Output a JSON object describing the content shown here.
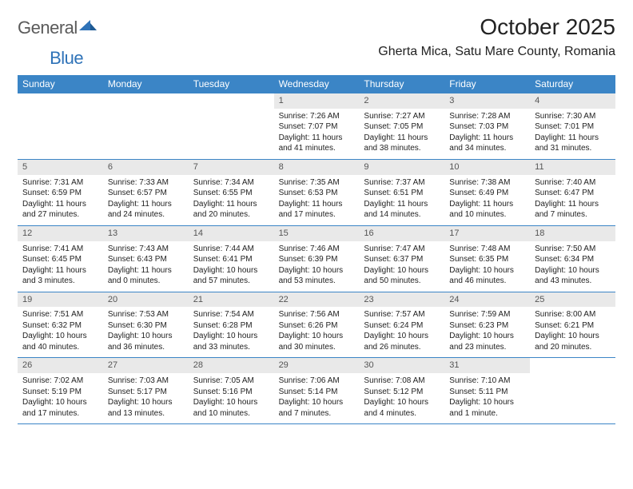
{
  "logo": {
    "word1": "General",
    "word2": "Blue"
  },
  "title": "October 2025",
  "location": "Gherta Mica, Satu Mare County, Romania",
  "colors": {
    "header_bg": "#3b85c6",
    "header_text": "#ffffff",
    "date_bg": "#e9e9e9",
    "rule": "#3b85c6",
    "body_text": "#222222",
    "logo_gray": "#5a5a5a",
    "logo_blue": "#2f73b8"
  },
  "typography": {
    "title_fontsize": 28,
    "location_fontsize": 16,
    "header_fontsize": 12,
    "cell_fontsize": 10,
    "date_fontsize": 11
  },
  "day_names": [
    "Sunday",
    "Monday",
    "Tuesday",
    "Wednesday",
    "Thursday",
    "Friday",
    "Saturday"
  ],
  "weeks": [
    [
      {
        "empty": true
      },
      {
        "empty": true
      },
      {
        "empty": true
      },
      {
        "date": "1",
        "sunrise": "Sunrise: 7:26 AM",
        "sunset": "Sunset: 7:07 PM",
        "day1": "Daylight: 11 hours",
        "day2": "and 41 minutes."
      },
      {
        "date": "2",
        "sunrise": "Sunrise: 7:27 AM",
        "sunset": "Sunset: 7:05 PM",
        "day1": "Daylight: 11 hours",
        "day2": "and 38 minutes."
      },
      {
        "date": "3",
        "sunrise": "Sunrise: 7:28 AM",
        "sunset": "Sunset: 7:03 PM",
        "day1": "Daylight: 11 hours",
        "day2": "and 34 minutes."
      },
      {
        "date": "4",
        "sunrise": "Sunrise: 7:30 AM",
        "sunset": "Sunset: 7:01 PM",
        "day1": "Daylight: 11 hours",
        "day2": "and 31 minutes."
      }
    ],
    [
      {
        "date": "5",
        "sunrise": "Sunrise: 7:31 AM",
        "sunset": "Sunset: 6:59 PM",
        "day1": "Daylight: 11 hours",
        "day2": "and 27 minutes."
      },
      {
        "date": "6",
        "sunrise": "Sunrise: 7:33 AM",
        "sunset": "Sunset: 6:57 PM",
        "day1": "Daylight: 11 hours",
        "day2": "and 24 minutes."
      },
      {
        "date": "7",
        "sunrise": "Sunrise: 7:34 AM",
        "sunset": "Sunset: 6:55 PM",
        "day1": "Daylight: 11 hours",
        "day2": "and 20 minutes."
      },
      {
        "date": "8",
        "sunrise": "Sunrise: 7:35 AM",
        "sunset": "Sunset: 6:53 PM",
        "day1": "Daylight: 11 hours",
        "day2": "and 17 minutes."
      },
      {
        "date": "9",
        "sunrise": "Sunrise: 7:37 AM",
        "sunset": "Sunset: 6:51 PM",
        "day1": "Daylight: 11 hours",
        "day2": "and 14 minutes."
      },
      {
        "date": "10",
        "sunrise": "Sunrise: 7:38 AM",
        "sunset": "Sunset: 6:49 PM",
        "day1": "Daylight: 11 hours",
        "day2": "and 10 minutes."
      },
      {
        "date": "11",
        "sunrise": "Sunrise: 7:40 AM",
        "sunset": "Sunset: 6:47 PM",
        "day1": "Daylight: 11 hours",
        "day2": "and 7 minutes."
      }
    ],
    [
      {
        "date": "12",
        "sunrise": "Sunrise: 7:41 AM",
        "sunset": "Sunset: 6:45 PM",
        "day1": "Daylight: 11 hours",
        "day2": "and 3 minutes."
      },
      {
        "date": "13",
        "sunrise": "Sunrise: 7:43 AM",
        "sunset": "Sunset: 6:43 PM",
        "day1": "Daylight: 11 hours",
        "day2": "and 0 minutes."
      },
      {
        "date": "14",
        "sunrise": "Sunrise: 7:44 AM",
        "sunset": "Sunset: 6:41 PM",
        "day1": "Daylight: 10 hours",
        "day2": "and 57 minutes."
      },
      {
        "date": "15",
        "sunrise": "Sunrise: 7:46 AM",
        "sunset": "Sunset: 6:39 PM",
        "day1": "Daylight: 10 hours",
        "day2": "and 53 minutes."
      },
      {
        "date": "16",
        "sunrise": "Sunrise: 7:47 AM",
        "sunset": "Sunset: 6:37 PM",
        "day1": "Daylight: 10 hours",
        "day2": "and 50 minutes."
      },
      {
        "date": "17",
        "sunrise": "Sunrise: 7:48 AM",
        "sunset": "Sunset: 6:35 PM",
        "day1": "Daylight: 10 hours",
        "day2": "and 46 minutes."
      },
      {
        "date": "18",
        "sunrise": "Sunrise: 7:50 AM",
        "sunset": "Sunset: 6:34 PM",
        "day1": "Daylight: 10 hours",
        "day2": "and 43 minutes."
      }
    ],
    [
      {
        "date": "19",
        "sunrise": "Sunrise: 7:51 AM",
        "sunset": "Sunset: 6:32 PM",
        "day1": "Daylight: 10 hours",
        "day2": "and 40 minutes."
      },
      {
        "date": "20",
        "sunrise": "Sunrise: 7:53 AM",
        "sunset": "Sunset: 6:30 PM",
        "day1": "Daylight: 10 hours",
        "day2": "and 36 minutes."
      },
      {
        "date": "21",
        "sunrise": "Sunrise: 7:54 AM",
        "sunset": "Sunset: 6:28 PM",
        "day1": "Daylight: 10 hours",
        "day2": "and 33 minutes."
      },
      {
        "date": "22",
        "sunrise": "Sunrise: 7:56 AM",
        "sunset": "Sunset: 6:26 PM",
        "day1": "Daylight: 10 hours",
        "day2": "and 30 minutes."
      },
      {
        "date": "23",
        "sunrise": "Sunrise: 7:57 AM",
        "sunset": "Sunset: 6:24 PM",
        "day1": "Daylight: 10 hours",
        "day2": "and 26 minutes."
      },
      {
        "date": "24",
        "sunrise": "Sunrise: 7:59 AM",
        "sunset": "Sunset: 6:23 PM",
        "day1": "Daylight: 10 hours",
        "day2": "and 23 minutes."
      },
      {
        "date": "25",
        "sunrise": "Sunrise: 8:00 AM",
        "sunset": "Sunset: 6:21 PM",
        "day1": "Daylight: 10 hours",
        "day2": "and 20 minutes."
      }
    ],
    [
      {
        "date": "26",
        "sunrise": "Sunrise: 7:02 AM",
        "sunset": "Sunset: 5:19 PM",
        "day1": "Daylight: 10 hours",
        "day2": "and 17 minutes."
      },
      {
        "date": "27",
        "sunrise": "Sunrise: 7:03 AM",
        "sunset": "Sunset: 5:17 PM",
        "day1": "Daylight: 10 hours",
        "day2": "and 13 minutes."
      },
      {
        "date": "28",
        "sunrise": "Sunrise: 7:05 AM",
        "sunset": "Sunset: 5:16 PM",
        "day1": "Daylight: 10 hours",
        "day2": "and 10 minutes."
      },
      {
        "date": "29",
        "sunrise": "Sunrise: 7:06 AM",
        "sunset": "Sunset: 5:14 PM",
        "day1": "Daylight: 10 hours",
        "day2": "and 7 minutes."
      },
      {
        "date": "30",
        "sunrise": "Sunrise: 7:08 AM",
        "sunset": "Sunset: 5:12 PM",
        "day1": "Daylight: 10 hours",
        "day2": "and 4 minutes."
      },
      {
        "date": "31",
        "sunrise": "Sunrise: 7:10 AM",
        "sunset": "Sunset: 5:11 PM",
        "day1": "Daylight: 10 hours",
        "day2": "and 1 minute."
      },
      {
        "empty": true
      }
    ]
  ]
}
